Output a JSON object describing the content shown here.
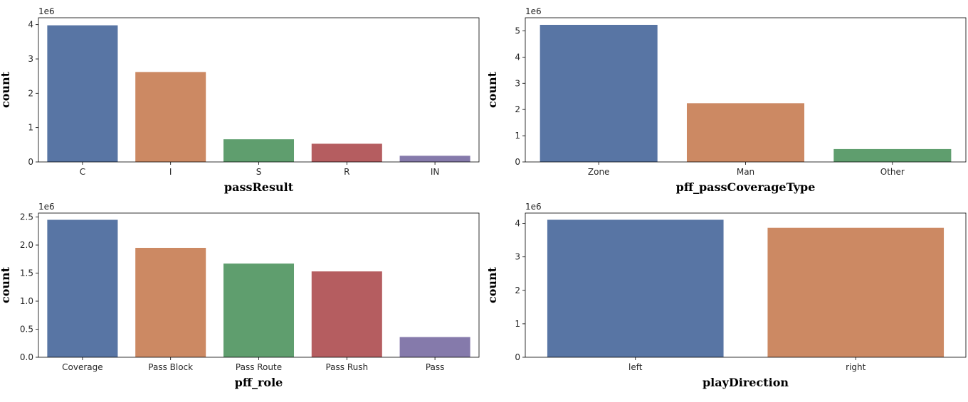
{
  "chart_data": [
    {
      "type": "bar",
      "categories": [
        "C",
        "I",
        "S",
        "R",
        "IN"
      ],
      "values": [
        3980000,
        2620000,
        660000,
        530000,
        180000
      ],
      "colors": [
        "#5875a4",
        "#cc8963",
        "#5f9e6e",
        "#b55d60",
        "#857aab"
      ],
      "xlabel": "passResult",
      "ylabel": "count",
      "ylim": [
        0,
        4200000
      ],
      "yticks": [
        0,
        1000000,
        2000000,
        3000000,
        4000000
      ],
      "ytick_labels": [
        "0",
        "1",
        "2",
        "3",
        "4"
      ],
      "offset_label": "1e6",
      "grid": false
    },
    {
      "type": "bar",
      "categories": [
        "Zone",
        "Man",
        "Other"
      ],
      "values": [
        5230000,
        2240000,
        490000
      ],
      "colors": [
        "#5875a4",
        "#cc8963",
        "#5f9e6e"
      ],
      "xlabel": "pff_passCoverageType",
      "ylabel": "count",
      "ylim": [
        0,
        5500000
      ],
      "yticks": [
        0,
        1000000,
        2000000,
        3000000,
        4000000,
        5000000
      ],
      "ytick_labels": [
        "0",
        "1",
        "2",
        "3",
        "4",
        "5"
      ],
      "offset_label": "1e6",
      "grid": false
    },
    {
      "type": "bar",
      "categories": [
        "Coverage",
        "Pass Block",
        "Pass Route",
        "Pass Rush",
        "Pass"
      ],
      "values": [
        2450000,
        1950000,
        1670000,
        1530000,
        360000
      ],
      "colors": [
        "#5875a4",
        "#cc8963",
        "#5f9e6e",
        "#b55d60",
        "#857aab"
      ],
      "xlabel": "pff_role",
      "ylabel": "count",
      "ylim": [
        0,
        2570000
      ],
      "yticks": [
        0,
        500000,
        1000000,
        1500000,
        2000000,
        2500000
      ],
      "ytick_labels": [
        "0.0",
        "0.5",
        "1.0",
        "1.5",
        "2.0",
        "2.5"
      ],
      "offset_label": "1e6",
      "grid": false
    },
    {
      "type": "bar",
      "categories": [
        "left",
        "right"
      ],
      "values": [
        4110000,
        3870000
      ],
      "colors": [
        "#5875a4",
        "#cc8963"
      ],
      "xlabel": "playDirection",
      "ylabel": "count",
      "ylim": [
        0,
        4310000
      ],
      "yticks": [
        0,
        1000000,
        2000000,
        3000000,
        4000000
      ],
      "ytick_labels": [
        "0",
        "1",
        "2",
        "3",
        "4"
      ],
      "offset_label": "1e6",
      "grid": false
    }
  ]
}
